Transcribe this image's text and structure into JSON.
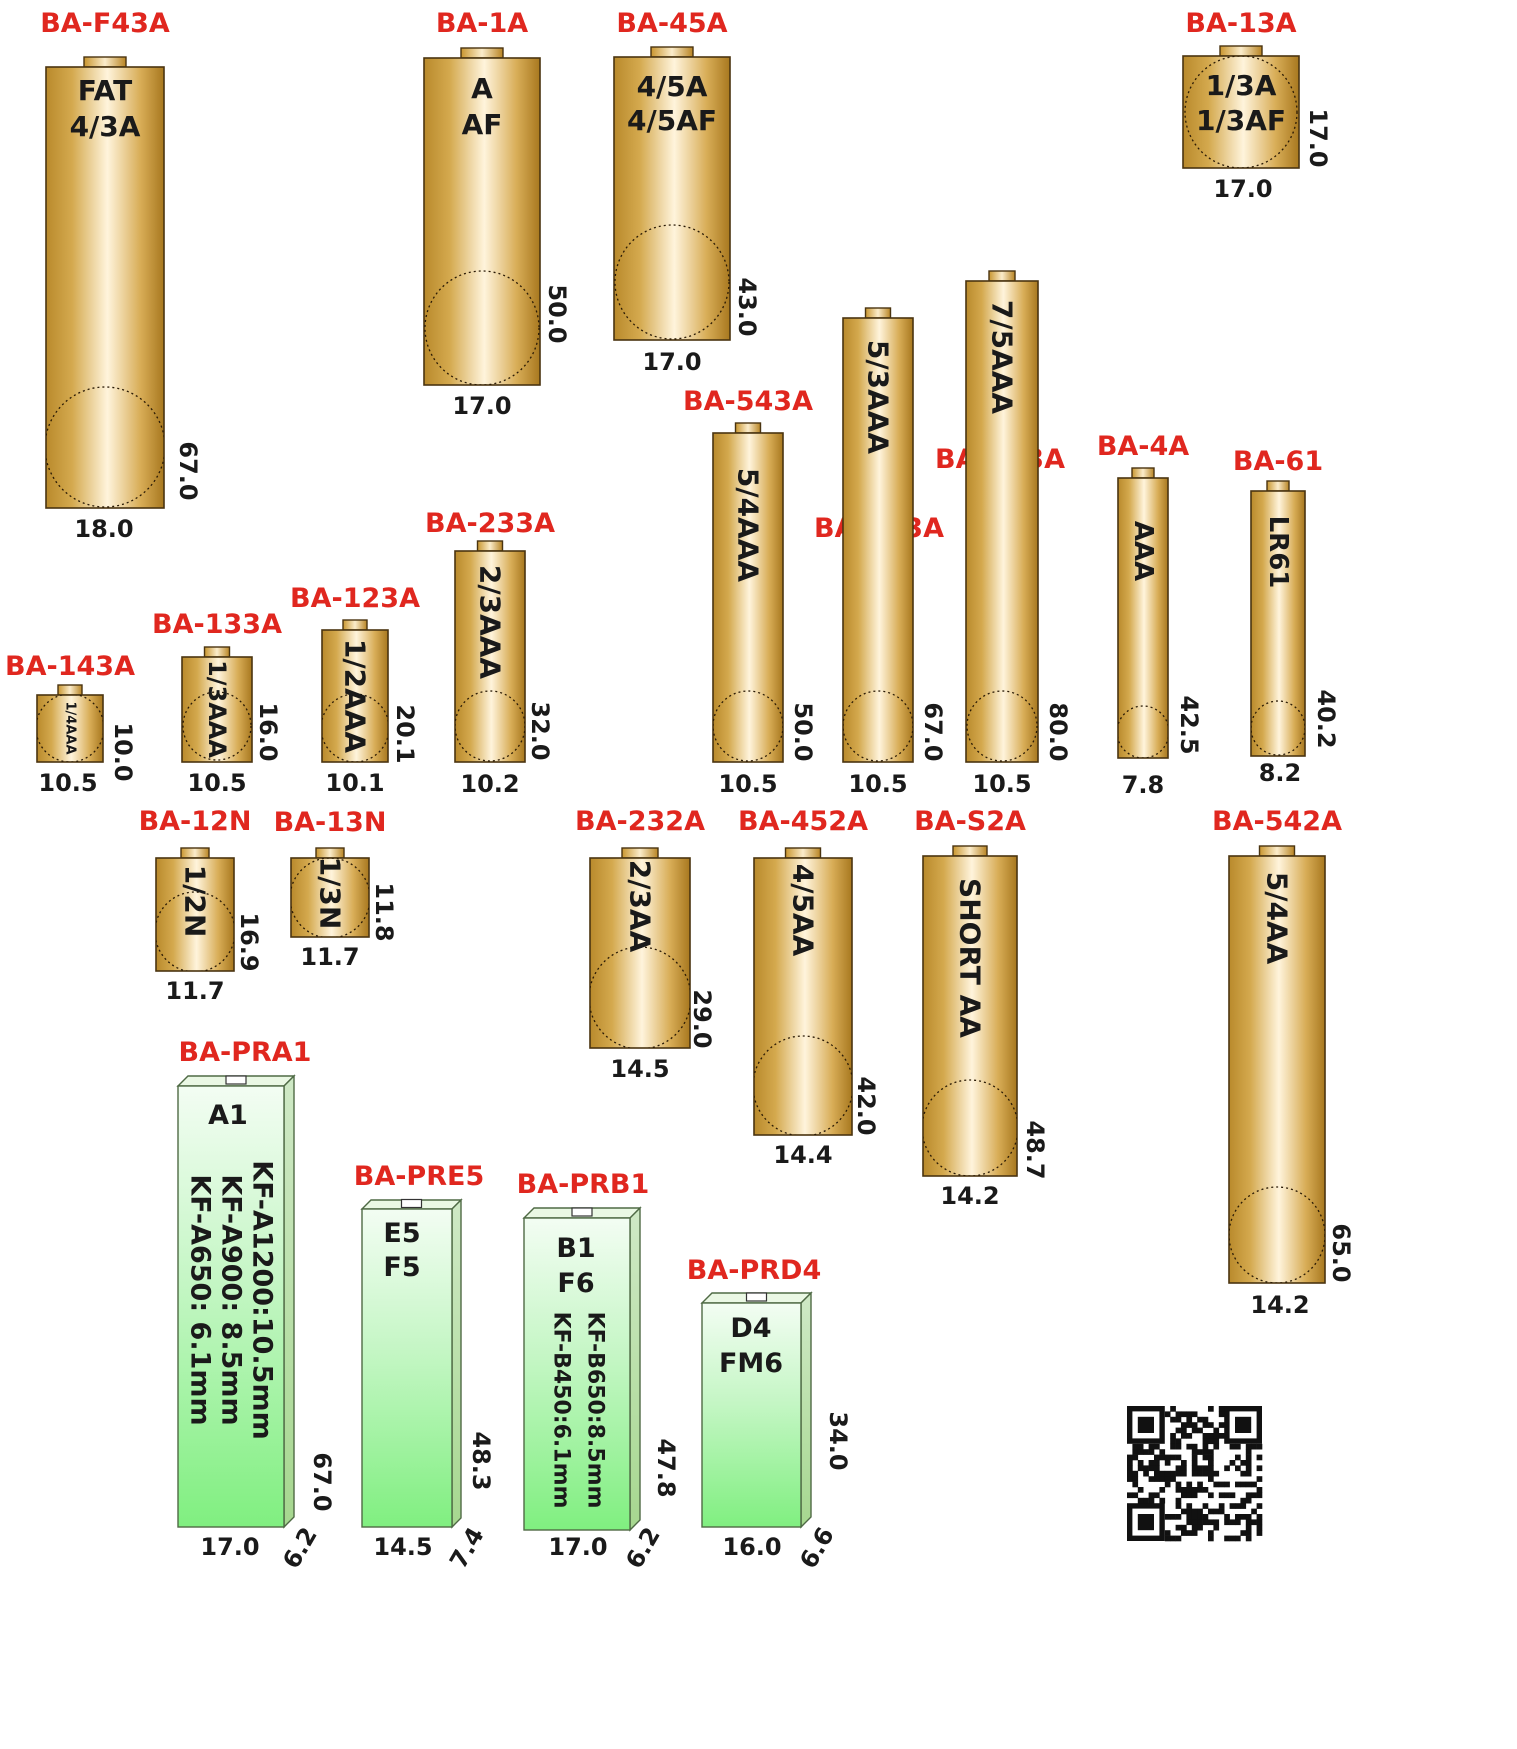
{
  "colors": {
    "code_text": "#e0271f",
    "gold_dark": "#b98a2c",
    "gold_light": "#fff4dc",
    "green_top": "#eefcee",
    "green_bottom": "#80f080"
  },
  "cells": [
    {
      "code": "BA-F43A",
      "labels": [
        "FAT",
        "4/3A"
      ],
      "width": "18.0",
      "height": "67.0"
    },
    {
      "code": "BA-1A",
      "labels": [
        "A",
        "AF"
      ],
      "width": "17.0",
      "height": "50.0"
    },
    {
      "code": "BA-45A",
      "labels": [
        "4/5A",
        "4/5AF"
      ],
      "width": "17.0",
      "height": "43.0"
    },
    {
      "code": "BA-13A",
      "labels": [
        "1/3A",
        "1/3AF"
      ],
      "width": "17.0",
      "height": "17.0"
    },
    {
      "code": "BA-543A",
      "labels": [
        "5/4AAA"
      ],
      "width": "10.5",
      "height": "50.0"
    },
    {
      "code": "BA-533A",
      "labels": [
        "5/3AAA"
      ],
      "width": "10.5",
      "height": "67.0"
    },
    {
      "code": "BA-753A",
      "labels": [
        "7/5AAA"
      ],
      "width": "10.5",
      "height": "80.0"
    },
    {
      "code": "BA-4A",
      "labels": [
        "AAA"
      ],
      "width": "7.8",
      "height": "42.5"
    },
    {
      "code": "BA-61",
      "labels": [
        "LR61"
      ],
      "width": "8.2",
      "height": "40.2"
    },
    {
      "code": "BA-143A",
      "labels": [
        "1/4AAA"
      ],
      "width": "10.5",
      "height": "10.0"
    },
    {
      "code": "BA-133A",
      "labels": [
        "1/3AAA"
      ],
      "width": "10.5",
      "height": "16.0"
    },
    {
      "code": "BA-123A",
      "labels": [
        "1/2AAA"
      ],
      "width": "10.1",
      "height": "20.1"
    },
    {
      "code": "BA-233A",
      "labels": [
        "2/3AAA"
      ],
      "width": "10.2",
      "height": "32.0"
    },
    {
      "code": "BA-12N",
      "labels": [
        "1/2N"
      ],
      "width": "11.7",
      "height": "16.9"
    },
    {
      "code": "BA-13N",
      "labels": [
        "1/3N"
      ],
      "width": "11.7",
      "height": "11.8"
    },
    {
      "code": "BA-232A",
      "labels": [
        "2/3AA"
      ],
      "width": "14.5",
      "height": "29.0"
    },
    {
      "code": "BA-452A",
      "labels": [
        "4/5AA"
      ],
      "width": "14.4",
      "height": "42.0"
    },
    {
      "code": "BA-S2A",
      "labels": [
        "SHORT AA"
      ],
      "width": "14.2",
      "height": "48.7"
    },
    {
      "code": "BA-542A",
      "labels": [
        "5/4AA"
      ],
      "width": "14.2",
      "height": "65.0"
    }
  ],
  "prismatic": [
    {
      "code": "BA-PRA1",
      "labels": [
        "A1"
      ],
      "notes": [
        "KF-A1200:10.5mm",
        "KF-A900: 8.5mm",
        "KF-A650: 6.1mm"
      ],
      "width": "17.0",
      "height": "67.0",
      "depth": "6.2"
    },
    {
      "code": "BA-PRE5",
      "labels": [
        "E5",
        "F5"
      ],
      "notes": [],
      "width": "14.5",
      "height": "48.3",
      "depth": "7.4"
    },
    {
      "code": "BA-PRB1",
      "labels": [
        "B1",
        "F6"
      ],
      "notes": [
        "KF-B650:8.5mm",
        "KF-B450:6.1mm"
      ],
      "width": "17.0",
      "height": "47.8",
      "depth": "6.2"
    },
    {
      "code": "BA-PRD4",
      "labels": [
        "D4",
        "FM6"
      ],
      "notes": [],
      "width": "16.0",
      "height": "34.0",
      "depth": "6.6"
    }
  ],
  "qr": {
    "icon": "qr-code-icon"
  }
}
